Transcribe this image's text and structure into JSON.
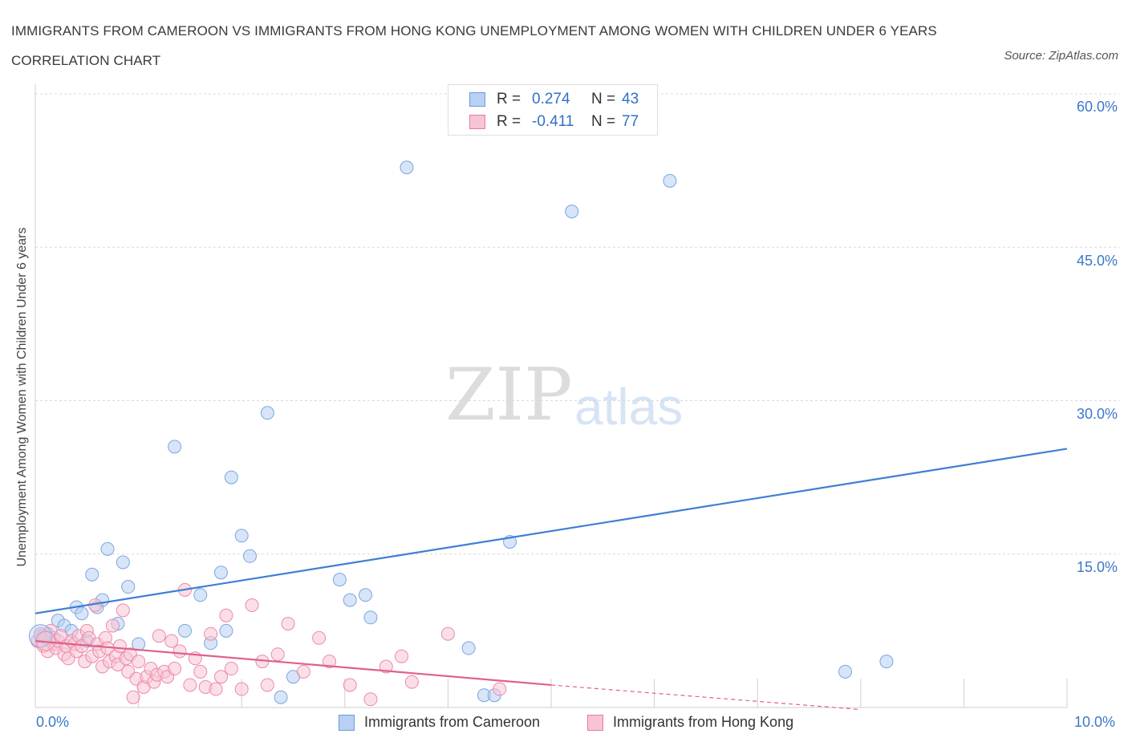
{
  "title": "IMMIGRANTS FROM CAMEROON VS IMMIGRANTS FROM HONG KONG UNEMPLOYMENT AMONG WOMEN WITH CHILDREN UNDER 6 YEARS CORRELATION CHART",
  "source": "Source: ZipAtlas.com",
  "watermark": {
    "zip": "ZIP",
    "atlas": "atlas"
  },
  "legend": {
    "r_label": "R =",
    "n_label": "N =",
    "series": [
      {
        "name": "Immigrants from Cameroon",
        "r": "0.274",
        "n": "43",
        "color": "#6a9be0",
        "fill": "#b8d0f3"
      },
      {
        "name": "Immigrants from Hong Kong",
        "r": "-0.411",
        "n": "77",
        "color": "#e87aa0",
        "fill": "#f7c4d4"
      }
    ]
  },
  "chart_data": {
    "type": "scatter",
    "title": "IMMIGRANTS FROM CAMEROON VS IMMIGRANTS FROM HONG KONG UNEMPLOYMENT AMONG WOMEN WITH CHILDREN UNDER 6 YEARS CORRELATION CHART",
    "xlabel": "",
    "ylabel": "Unemployment Among Women with Children Under 6 years",
    "xlim": [
      0,
      10
    ],
    "ylim": [
      0,
      60
    ],
    "x_ticks": [
      "0.0%",
      "10.0%"
    ],
    "y_ticks": [
      "15.0%",
      "30.0%",
      "45.0%",
      "60.0%"
    ],
    "grid": true,
    "legend_position": "top-center",
    "series": [
      {
        "name": "Immigrants from Cameroon",
        "color": "#4a86d6",
        "points": [
          [
            0.05,
            7.0
          ],
          [
            0.12,
            7.2
          ],
          [
            0.18,
            6.8
          ],
          [
            0.22,
            8.5
          ],
          [
            0.28,
            8.0
          ],
          [
            0.35,
            7.5
          ],
          [
            0.4,
            9.8
          ],
          [
            0.45,
            9.2
          ],
          [
            0.5,
            6.5
          ],
          [
            0.55,
            13.0
          ],
          [
            0.6,
            9.8
          ],
          [
            0.65,
            10.5
          ],
          [
            0.7,
            15.5
          ],
          [
            0.8,
            8.2
          ],
          [
            0.85,
            14.2
          ],
          [
            0.9,
            11.8
          ],
          [
            1.0,
            6.2
          ],
          [
            1.35,
            25.5
          ],
          [
            1.45,
            7.5
          ],
          [
            1.6,
            11.0
          ],
          [
            1.7,
            6.3
          ],
          [
            1.8,
            13.2
          ],
          [
            1.85,
            7.5
          ],
          [
            1.9,
            22.5
          ],
          [
            2.0,
            16.8
          ],
          [
            2.08,
            14.8
          ],
          [
            2.25,
            28.8
          ],
          [
            2.38,
            1.0
          ],
          [
            2.5,
            3.0
          ],
          [
            2.95,
            12.5
          ],
          [
            3.05,
            10.5
          ],
          [
            3.2,
            11.0
          ],
          [
            3.25,
            8.8
          ],
          [
            3.6,
            52.8
          ],
          [
            4.2,
            5.8
          ],
          [
            4.35,
            1.2
          ],
          [
            4.45,
            1.2
          ],
          [
            4.6,
            16.2
          ],
          [
            5.2,
            48.5
          ],
          [
            6.15,
            51.5
          ],
          [
            7.85,
            3.5
          ],
          [
            8.25,
            4.5
          ],
          [
            0.08,
            7.0
          ]
        ],
        "trend": {
          "x": [
            0,
            10
          ],
          "y": [
            9.2,
            25.3
          ]
        }
      },
      {
        "name": "Immigrants from Hong Kong",
        "color": "#e0608a",
        "points": [
          [
            0.02,
            6.5
          ],
          [
            0.05,
            7.2
          ],
          [
            0.08,
            6.0
          ],
          [
            0.1,
            6.8
          ],
          [
            0.12,
            5.5
          ],
          [
            0.15,
            7.5
          ],
          [
            0.18,
            6.2
          ],
          [
            0.2,
            5.8
          ],
          [
            0.22,
            6.5
          ],
          [
            0.25,
            7.0
          ],
          [
            0.28,
            5.2
          ],
          [
            0.3,
            6.0
          ],
          [
            0.32,
            4.8
          ],
          [
            0.35,
            6.5
          ],
          [
            0.38,
            6.2
          ],
          [
            0.4,
            5.5
          ],
          [
            0.42,
            7.0
          ],
          [
            0.45,
            6.0
          ],
          [
            0.48,
            4.5
          ],
          [
            0.5,
            7.5
          ],
          [
            0.52,
            6.8
          ],
          [
            0.55,
            5.0
          ],
          [
            0.58,
            10.0
          ],
          [
            0.6,
            6.2
          ],
          [
            0.62,
            5.5
          ],
          [
            0.65,
            4.0
          ],
          [
            0.68,
            6.8
          ],
          [
            0.7,
            5.8
          ],
          [
            0.72,
            4.5
          ],
          [
            0.75,
            8.0
          ],
          [
            0.78,
            5.0
          ],
          [
            0.8,
            4.2
          ],
          [
            0.82,
            6.0
          ],
          [
            0.85,
            9.5
          ],
          [
            0.88,
            4.8
          ],
          [
            0.9,
            3.5
          ],
          [
            0.92,
            5.2
          ],
          [
            0.95,
            1.0
          ],
          [
            0.98,
            2.8
          ],
          [
            1.0,
            4.5
          ],
          [
            1.05,
            2.0
          ],
          [
            1.08,
            3.0
          ],
          [
            1.12,
            3.8
          ],
          [
            1.15,
            2.5
          ],
          [
            1.18,
            3.2
          ],
          [
            1.2,
            7.0
          ],
          [
            1.25,
            3.5
          ],
          [
            1.28,
            3.0
          ],
          [
            1.32,
            6.5
          ],
          [
            1.35,
            3.8
          ],
          [
            1.4,
            5.5
          ],
          [
            1.45,
            11.5
          ],
          [
            1.5,
            2.2
          ],
          [
            1.55,
            4.8
          ],
          [
            1.6,
            3.5
          ],
          [
            1.65,
            2.0
          ],
          [
            1.7,
            7.2
          ],
          [
            1.75,
            1.8
          ],
          [
            1.8,
            3.0
          ],
          [
            1.85,
            9.0
          ],
          [
            1.9,
            3.8
          ],
          [
            2.0,
            1.8
          ],
          [
            2.1,
            10.0
          ],
          [
            2.2,
            4.5
          ],
          [
            2.25,
            2.2
          ],
          [
            2.35,
            5.2
          ],
          [
            2.45,
            8.2
          ],
          [
            2.6,
            3.5
          ],
          [
            2.75,
            6.8
          ],
          [
            2.85,
            4.5
          ],
          [
            3.05,
            2.2
          ],
          [
            3.25,
            0.8
          ],
          [
            3.4,
            4.0
          ],
          [
            3.55,
            5.0
          ],
          [
            3.65,
            2.5
          ],
          [
            4.0,
            7.2
          ],
          [
            4.5,
            1.8
          ]
        ],
        "trend": {
          "x": [
            0,
            5
          ],
          "y": [
            6.5,
            2.2
          ]
        },
        "trend_dashed": {
          "x": [
            5,
            8
          ],
          "y": [
            2.2,
            -0.2
          ]
        }
      }
    ]
  }
}
